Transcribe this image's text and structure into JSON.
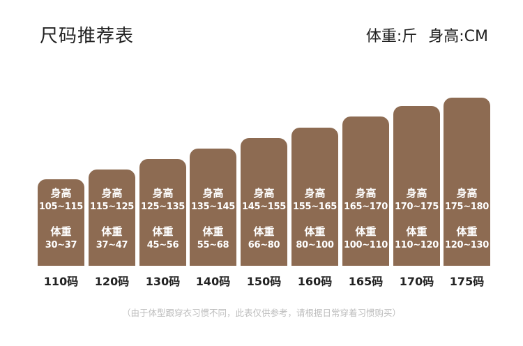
{
  "title": "尺码推荐表",
  "units": {
    "weight": "体重:斤",
    "height": "身高:CM"
  },
  "labels": {
    "height": "身高",
    "weight": "体重"
  },
  "sizes": [
    {
      "size": "110码",
      "height": "105~115",
      "weight": "30~37"
    },
    {
      "size": "120码",
      "height": "115~125",
      "weight": "37~47"
    },
    {
      "size": "130码",
      "height": "125~135",
      "weight": "45~56"
    },
    {
      "size": "140码",
      "height": "135~145",
      "weight": "55~68"
    },
    {
      "size": "150码",
      "height": "145~155",
      "weight": "66~80"
    },
    {
      "size": "160码",
      "height": "155~165",
      "weight": "80~100"
    },
    {
      "size": "165码",
      "height": "165~170",
      "weight": "100~110"
    },
    {
      "size": "170码",
      "height": "170~175",
      "weight": "110~120"
    },
    {
      "size": "175码",
      "height": "175~180",
      "weight": "120~130"
    }
  ],
  "note": "（由于体型跟穿衣习惯不同，此表仅供参考，请根据日常穿着习惯购买）",
  "colors": {
    "bar": "#8d6b52",
    "text": "#222222",
    "note": "#bdbdbd"
  }
}
